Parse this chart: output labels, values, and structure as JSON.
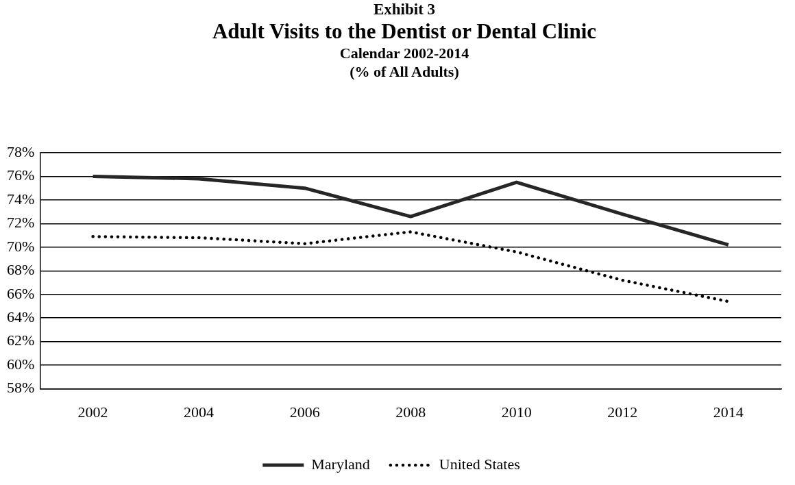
{
  "chart_data": {
    "type": "line",
    "annotations": [
      "Exhibit 3"
    ],
    "title": "Adult Visits to the Dentist or Dental Clinic",
    "subtitle": "Calendar 2002-2014\n(% of All Adults)",
    "categories": [
      "2002",
      "2004",
      "2006",
      "2008",
      "2010",
      "2012",
      "2014"
    ],
    "series": [
      {
        "name": "Maryland",
        "color": "#262626",
        "line_style": "solid",
        "values": [
          76.0,
          75.8,
          75.0,
          72.6,
          75.5,
          72.8,
          70.2
        ]
      },
      {
        "name": "United States",
        "color": "#000000",
        "line_style": "dotted",
        "values": [
          70.9,
          70.8,
          70.3,
          71.3,
          69.6,
          67.2,
          65.4
        ]
      }
    ],
    "ylim": [
      58,
      78
    ],
    "yticks": [
      {
        "value": 58,
        "label": "58%"
      },
      {
        "value": 60,
        "label": "60%"
      },
      {
        "value": 62,
        "label": "62%"
      },
      {
        "value": 64,
        "label": "64%"
      },
      {
        "value": 66,
        "label": "66%"
      },
      {
        "value": 68,
        "label": "68%"
      },
      {
        "value": 70,
        "label": "70%"
      },
      {
        "value": 72,
        "label": "72%"
      },
      {
        "value": 74,
        "label": "74%"
      },
      {
        "value": 76,
        "label": "76%"
      },
      {
        "value": 78,
        "label": "78%"
      }
    ],
    "grid": "y",
    "legend": "bottom",
    "marker": "none"
  }
}
